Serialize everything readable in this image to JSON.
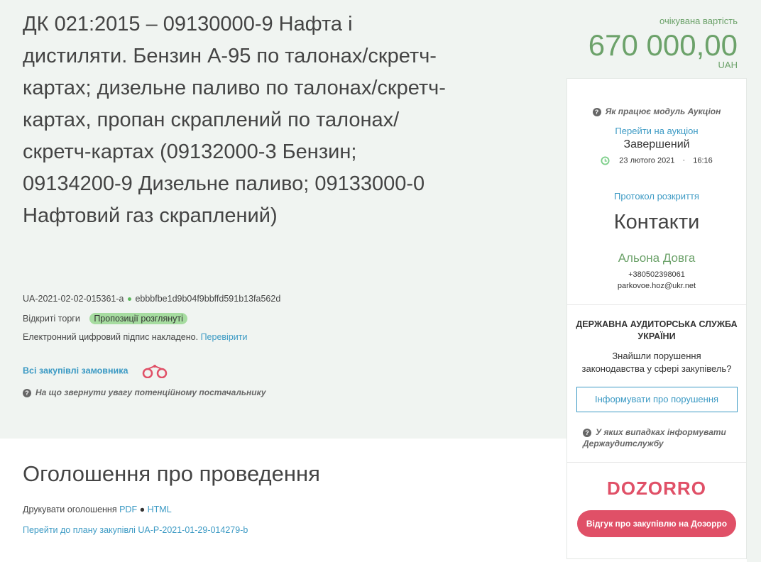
{
  "tender": {
    "title": "ДК 021:2015 – 09130000-9 Нафта і дистиляти. Бензин А-95 по талонах/скретч-картах; дизельне паливо по талонах/скретч-картах, пропан скраплений по талонах/скретч-картах (09132000-3 Бензин; 09134200-9 Дизельне паливо; 09133000-0 Нафтовий газ скраплений)",
    "id": "UA-2021-02-02-015361-a",
    "hash": "ebbbfbe1d9b04f9bbffd591b13fa562d",
    "procedure": "Відкриті торги",
    "status": "Пропозиції розглянуті",
    "signature_text": "Електронний цифровий підпис накладено.",
    "signature_link": "Перевірити",
    "all_purchases": "Всі закупівлі замовника",
    "help_supplier": "На що звернути увагу потенційному постачальнику"
  },
  "value": {
    "label": "очікувана вартість",
    "amount": "670 000,00",
    "currency": "UAH"
  },
  "auction": {
    "help": "Як працює модуль Аукціон",
    "link": "Перейти на аукціон",
    "state": "Завершений",
    "date": "23 лютого 2021",
    "time": "16:16",
    "protocol": "Протокол розкриття"
  },
  "contacts": {
    "title": "Контакти",
    "name": "Альона Довга",
    "phone": "+380502398061",
    "email": "parkovoe.hoz@ukr.net"
  },
  "audit": {
    "title": "ДЕРЖАВНА АУДИТОРСЬКА СЛУЖБА УКРАЇНИ",
    "text": "Знайшли порушення законодавства у сфері закупівель?",
    "button": "Інформувати про порушення",
    "help": "У яких випадках інформувати Держаудитслужбу"
  },
  "dozorro": {
    "logo": "DOZORRO",
    "button": "Відгук про закупівлю на Дозорро"
  },
  "announcement": {
    "title": "Оголошення про проведення",
    "print_label": "Друкувати оголошення",
    "pdf": "PDF",
    "html": "HTML",
    "plan_link": "Перейти до плану закупівлі UA-P-2021-01-29-014279-b"
  },
  "colors": {
    "green": "#6ca26a",
    "link": "#3c9ac4",
    "dozorro": "#e05067",
    "badge": "#a6dca0"
  }
}
